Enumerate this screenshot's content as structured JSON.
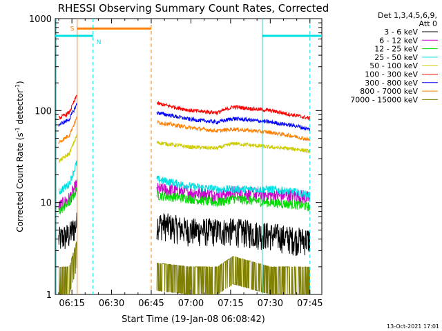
{
  "chart_data": {
    "type": "line",
    "title": "RHESSI Observing Summary Count Rates, Corrected",
    "xlabel": "Start Time (19-Jan-08 06:08:42)",
    "ylabel": "Corrected Count Rate (s⁻¹ detector⁻¹)",
    "ylabel_parts": {
      "a": "Corrected Count Rate (s",
      "b": " detector",
      "sup": "-1",
      "c": ")"
    },
    "yscale": "log",
    "ylim": [
      1,
      1000
    ],
    "xlim_minutes": [
      368.7,
      469.5
    ],
    "x_ticks": [
      {
        "label": "06:15",
        "minute": 375
      },
      {
        "label": "06:30",
        "minute": 390
      },
      {
        "label": "06:45",
        "minute": 405
      },
      {
        "label": "07:00",
        "minute": 420
      },
      {
        "label": "07:15",
        "minute": 435
      },
      {
        "label": "07:30",
        "minute": 450
      },
      {
        "label": "07:45",
        "minute": 465
      }
    ],
    "y_ticks": [
      {
        "label": "1",
        "value": 1
      },
      {
        "label": "10",
        "value": 10
      },
      {
        "label": "100",
        "value": 100
      },
      {
        "label": "1000",
        "value": 1000
      }
    ],
    "legend": {
      "header": [
        "Det 1,3,4,5,6,9,",
        "Att 0"
      ],
      "placement": "right"
    },
    "x_times": [
      "06:10",
      "06:14",
      "06:17",
      "06:19",
      "06:47",
      "07:00",
      "07:10",
      "07:16",
      "07:30",
      "07:40",
      "07:45"
    ],
    "series": [
      {
        "name": "3 - 6 keV",
        "color": "#000000",
        "values": [
          4,
          4.5,
          6,
          null,
          6,
          5,
          5,
          5,
          4.5,
          4,
          4
        ]
      },
      {
        "name": "6 - 12 keV",
        "color": "#cc00cc",
        "values": [
          9,
          11,
          16,
          null,
          14,
          13,
          12,
          13,
          12,
          12,
          11
        ]
      },
      {
        "name": "12 - 25 keV",
        "color": "#00dd00",
        "values": [
          8,
          10,
          14,
          null,
          12,
          11,
          10,
          11,
          10,
          9.5,
          9
        ]
      },
      {
        "name": "25 - 50 keV",
        "color": "#00e0e0",
        "values": [
          13,
          16,
          28,
          null,
          18,
          15,
          14,
          14,
          14,
          13,
          12
        ]
      },
      {
        "name": "50 - 100 keV",
        "color": "#cccc00",
        "values": [
          28,
          34,
          55,
          null,
          45,
          40,
          39,
          44,
          40,
          38,
          36
        ]
      },
      {
        "name": "100 - 300 keV",
        "color": "#ff0000",
        "values": [
          82,
          95,
          150,
          null,
          120,
          100,
          95,
          110,
          100,
          88,
          82
        ]
      },
      {
        "name": "300 - 800 keV",
        "color": "#0000ff",
        "values": [
          70,
          80,
          120,
          null,
          95,
          80,
          75,
          82,
          75,
          68,
          62
        ]
      },
      {
        "name": "800 - 7000 keV",
        "color": "#ff8000",
        "values": [
          45,
          54,
          85,
          null,
          75,
          65,
          60,
          63,
          58,
          52,
          48
        ]
      },
      {
        "name": "7000 - 15000 keV",
        "color": "#808000",
        "values": [
          2,
          2,
          4,
          null,
          2.2,
          2,
          2,
          2.6,
          2,
          2,
          2
        ]
      }
    ],
    "flag_bars": [
      {
        "label": "S",
        "color": "#ff8000"
      },
      {
        "label": "N",
        "color": "#00e0e0"
      }
    ],
    "footer_date": "13-Oct-2021 17:01"
  }
}
